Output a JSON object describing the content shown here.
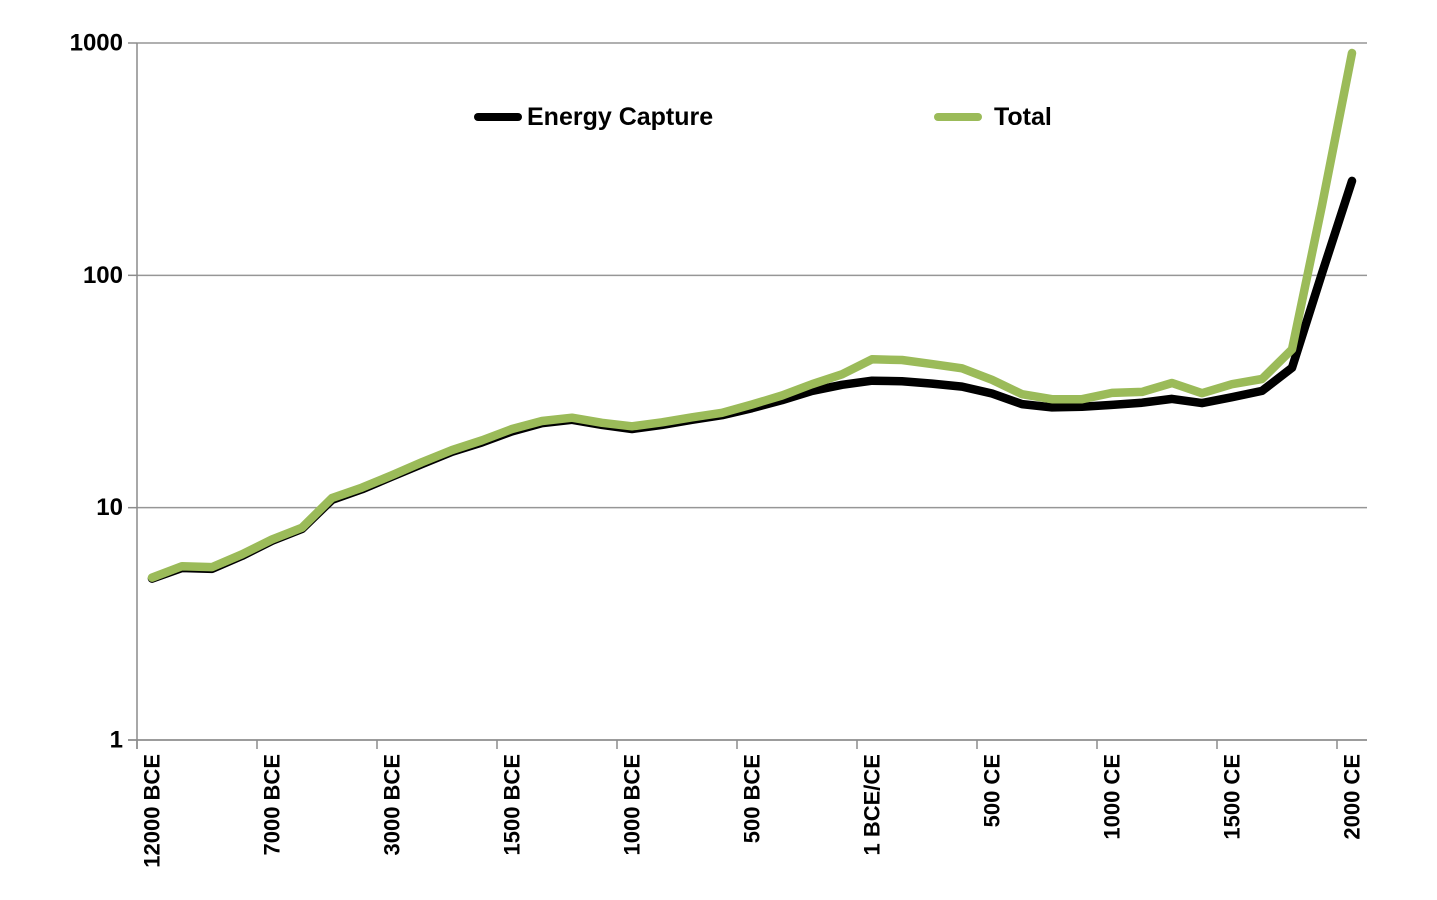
{
  "chart_data": {
    "type": "line",
    "title": "",
    "xlabel": "",
    "ylabel": "",
    "y_scale": "log",
    "ylim": [
      1,
      1000
    ],
    "grid": "horizontal",
    "legend_position": "top",
    "y_ticks": [
      "1",
      "10",
      "100",
      "1000"
    ],
    "y_tick_values": [
      1,
      10,
      100,
      1000
    ],
    "x_tick_labels": [
      "12000 BCE",
      "7000 BCE",
      "3000 BCE",
      "1500 BCE",
      "1000 BCE",
      "500 BCE",
      "1 BCE/CE",
      "500 CE",
      "1000 CE",
      "1500 CE",
      "2000 CE"
    ],
    "x_label_rotation_degrees": 90,
    "categories_per_tick": 4,
    "series": [
      {
        "name": "Energy Capture",
        "color": "#000000",
        "values": [
          4.95,
          5.5,
          5.45,
          6.2,
          7.2,
          8.1,
          10.8,
          12.0,
          13.6,
          15.4,
          17.4,
          19.1,
          21.3,
          23.1,
          23.9,
          22.7,
          21.8,
          22.7,
          23.9,
          25.0,
          26.8,
          29.0,
          31.8,
          33.8,
          35.2,
          35.0,
          34.2,
          33.2,
          31.0,
          27.9,
          27.0,
          27.2,
          27.7,
          28.3,
          29.4,
          28.2,
          29.9,
          31.8,
          40.0,
          102.0,
          255.0
        ]
      },
      {
        "name": "Total",
        "color": "#9BBB59",
        "values": [
          5.0,
          5.6,
          5.55,
          6.3,
          7.3,
          8.2,
          11.0,
          12.2,
          13.8,
          15.7,
          17.7,
          19.5,
          21.8,
          23.6,
          24.4,
          23.2,
          22.4,
          23.3,
          24.5,
          25.6,
          27.8,
          30.4,
          34.0,
          37.5,
          43.5,
          43.2,
          41.5,
          39.8,
          35.5,
          30.8,
          29.3,
          29.3,
          31.2,
          31.5,
          34.4,
          31.1,
          34.0,
          35.8,
          48.0,
          200.0,
          906.0
        ]
      }
    ],
    "legend": [
      "Energy Capture",
      "Total"
    ],
    "axis_color": "#8c8c8c",
    "gridline_color": "#969696",
    "text_color": "#000000"
  }
}
